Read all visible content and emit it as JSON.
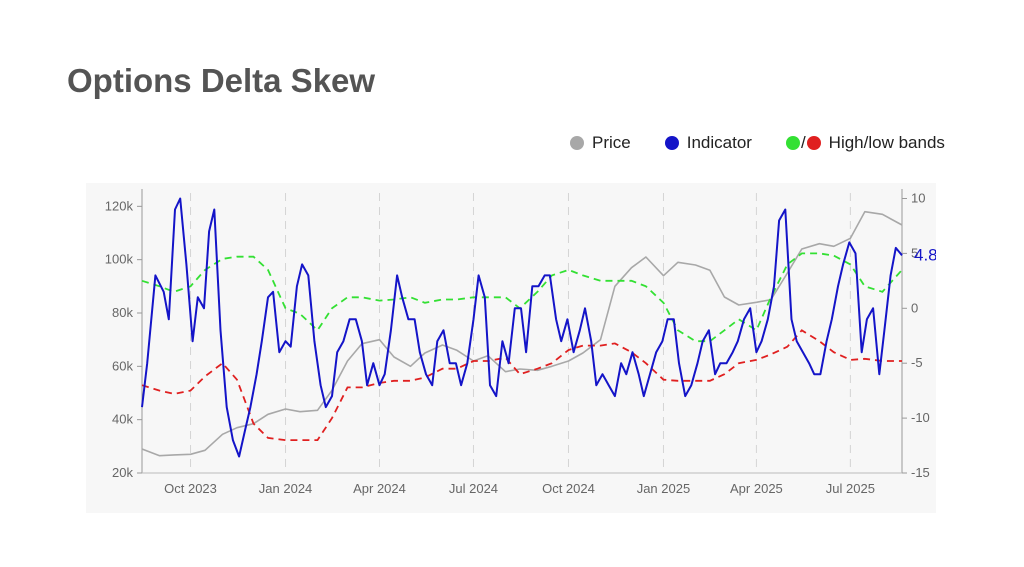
{
  "title": "Options Delta Skew",
  "legend": {
    "price": "Price",
    "indicator": "Indicator",
    "slash": "/",
    "bands": "High/low bands"
  },
  "colors": {
    "price": "#a8a8a8",
    "indicator": "#1414c8",
    "high_band": "#33e033",
    "low_band": "#e02020",
    "grid": "#d4d4d4",
    "axis_text": "#666666",
    "last_value": "#1414c8"
  },
  "chart_data": {
    "type": "line",
    "x_ticks": [
      "Oct 2023",
      "Jan 2024",
      "Apr 2024",
      "Jul 2024",
      "Oct 2024",
      "Jan 2025",
      "Apr 2025",
      "Jul 2025"
    ],
    "left_axis": {
      "label": "",
      "ylim": [
        20000,
        125000
      ],
      "ticks": [
        "20k",
        "40k",
        "60k",
        "80k",
        "100k",
        "120k"
      ]
    },
    "right_axis": {
      "label": "",
      "ylim": [
        -15,
        10.5
      ],
      "ticks": [
        "-15",
        "-10",
        "-5",
        "0",
        "5",
        "10"
      ]
    },
    "grid": "vertical dashed",
    "legend_position": "top-right",
    "last_value_label": "4.83",
    "series": [
      {
        "name": "Price",
        "axis": "left",
        "x": [
          "2023-08-15",
          "2023-09-01",
          "2023-09-15",
          "2023-10-01",
          "2023-10-15",
          "2023-11-01",
          "2023-11-15",
          "2023-12-01",
          "2023-12-15",
          "2024-01-01",
          "2024-01-15",
          "2024-02-01",
          "2024-02-15",
          "2024-03-01",
          "2024-03-15",
          "2024-04-01",
          "2024-04-15",
          "2024-05-01",
          "2024-05-15",
          "2024-06-01",
          "2024-06-15",
          "2024-07-01",
          "2024-07-15",
          "2024-08-01",
          "2024-08-15",
          "2024-09-01",
          "2024-09-15",
          "2024-10-01",
          "2024-10-15",
          "2024-11-01",
          "2024-11-15",
          "2024-12-01",
          "2024-12-15",
          "2025-01-01",
          "2025-01-15",
          "2025-02-01",
          "2025-02-15",
          "2025-03-01",
          "2025-03-15",
          "2025-04-01",
          "2025-04-15",
          "2025-05-01",
          "2025-05-15",
          "2025-06-01",
          "2025-06-15",
          "2025-07-01",
          "2025-07-15",
          "2025-08-01",
          "2025-08-20"
        ],
        "values": [
          29000,
          26500,
          26800,
          27000,
          28500,
          34500,
          37000,
          38500,
          42000,
          44000,
          43000,
          43500,
          51000,
          62000,
          68500,
          70000,
          63500,
          60000,
          65000,
          68000,
          66000,
          62000,
          64000,
          58000,
          59000,
          58500,
          60000,
          62000,
          65000,
          70000,
          90000,
          97000,
          101000,
          94000,
          99000,
          98000,
          96000,
          86000,
          83000,
          84000,
          85000,
          95000,
          104000,
          106000,
          105000,
          108000,
          118000,
          117000,
          113000
        ]
      },
      {
        "name": "Indicator",
        "axis": "right",
        "x": [
          "2023-08-15",
          "2023-08-20",
          "2023-08-28",
          "2023-09-05",
          "2023-09-10",
          "2023-09-16",
          "2023-09-21",
          "2023-09-27",
          "2023-10-03",
          "2023-10-08",
          "2023-10-14",
          "2023-10-19",
          "2023-10-24",
          "2023-10-30",
          "2023-11-05",
          "2023-11-11",
          "2023-11-17",
          "2023-11-23",
          "2023-11-28",
          "2023-12-04",
          "2023-12-09",
          "2023-12-15",
          "2023-12-20",
          "2023-12-26",
          "2024-01-01",
          "2024-01-06",
          "2024-01-12",
          "2024-01-17",
          "2024-01-23",
          "2024-01-29",
          "2024-02-04",
          "2024-02-09",
          "2024-02-15",
          "2024-02-20",
          "2024-02-26",
          "2024-03-03",
          "2024-03-09",
          "2024-03-15",
          "2024-03-20",
          "2024-03-26",
          "2024-04-01",
          "2024-04-06",
          "2024-04-12",
          "2024-04-18",
          "2024-04-23",
          "2024-04-29",
          "2024-05-05",
          "2024-05-10",
          "2024-05-16",
          "2024-05-22",
          "2024-05-27",
          "2024-06-02",
          "2024-06-08",
          "2024-06-14",
          "2024-06-19",
          "2024-06-25",
          "2024-07-01",
          "2024-07-06",
          "2024-07-12",
          "2024-07-17",
          "2024-07-23",
          "2024-07-29",
          "2024-08-04",
          "2024-08-10",
          "2024-08-16",
          "2024-08-21",
          "2024-08-27",
          "2024-09-02",
          "2024-09-08",
          "2024-09-13",
          "2024-09-19",
          "2024-09-24",
          "2024-09-30",
          "2024-10-06",
          "2024-10-12",
          "2024-10-17",
          "2024-10-23",
          "2024-10-28",
          "2024-11-03",
          "2024-11-09",
          "2024-11-15",
          "2024-11-21",
          "2024-11-26",
          "2024-12-02",
          "2024-12-08",
          "2024-12-13",
          "2024-12-19",
          "2024-12-25",
          "2024-12-31",
          "2025-01-05",
          "2025-01-11",
          "2025-01-16",
          "2025-01-22",
          "2025-01-28",
          "2025-02-03",
          "2025-02-08",
          "2025-02-14",
          "2025-02-20",
          "2025-02-25",
          "2025-03-03",
          "2025-03-09",
          "2025-03-14",
          "2025-03-20",
          "2025-03-26",
          "2025-04-01",
          "2025-04-06",
          "2025-04-12",
          "2025-04-18",
          "2025-04-23",
          "2025-04-29",
          "2025-05-05",
          "2025-05-10",
          "2025-05-16",
          "2025-05-22",
          "2025-05-27",
          "2025-06-02",
          "2025-06-08",
          "2025-06-13",
          "2025-06-19",
          "2025-06-24",
          "2025-06-30",
          "2025-07-06",
          "2025-07-12",
          "2025-07-17",
          "2025-07-23",
          "2025-07-29",
          "2025-08-03",
          "2025-08-09",
          "2025-08-14",
          "2025-08-20"
        ],
        "values": [
          -9,
          -5,
          3,
          1.5,
          -1,
          9,
          10,
          4,
          -3,
          1,
          0,
          7,
          9,
          -2,
          -9,
          -12,
          -13.5,
          -11,
          -9,
          -6,
          -3,
          1,
          1.5,
          -4,
          -3,
          -3.5,
          2,
          4,
          3,
          -3,
          -7,
          -9,
          -8,
          -4,
          -3,
          -1,
          -1,
          -3,
          -7,
          -5,
          -7,
          -6,
          -2,
          3,
          1,
          -1,
          -1,
          -4,
          -6,
          -7,
          -3,
          -2,
          -5,
          -5,
          -7,
          -5,
          -1,
          3,
          1,
          -7,
          -8,
          -3,
          -5,
          0,
          0,
          -4,
          2,
          2,
          3,
          3,
          -1,
          -3,
          -1,
          -4,
          -2,
          0,
          -3,
          -7,
          -6,
          -7,
          -8,
          -5,
          -6,
          -4,
          -6,
          -8,
          -6,
          -4,
          -3,
          -1,
          -1,
          -5,
          -8,
          -7,
          -5,
          -3,
          -2,
          -6,
          -5,
          -5,
          -4,
          -3,
          -1,
          0,
          -4,
          -3,
          -1,
          2,
          8,
          9,
          -1,
          -3,
          -4,
          -5,
          -6,
          -6,
          -3,
          -1,
          2,
          4,
          6,
          5,
          -4,
          -1,
          0,
          -6,
          -2,
          3,
          5.5,
          4.83
        ]
      },
      {
        "name": "High band",
        "axis": "right",
        "x": [
          "2023-08-15",
          "2023-09-01",
          "2023-09-15",
          "2023-10-01",
          "2023-10-15",
          "2023-11-01",
          "2023-11-15",
          "2023-12-01",
          "2023-12-15",
          "2024-01-01",
          "2024-01-15",
          "2024-02-01",
          "2024-02-15",
          "2024-03-01",
          "2024-03-15",
          "2024-04-01",
          "2024-04-15",
          "2024-05-01",
          "2024-05-15",
          "2024-06-01",
          "2024-06-15",
          "2024-07-01",
          "2024-07-15",
          "2024-08-01",
          "2024-08-15",
          "2024-09-01",
          "2024-09-15",
          "2024-10-01",
          "2024-10-15",
          "2024-11-01",
          "2024-11-15",
          "2024-12-01",
          "2024-12-15",
          "2025-01-01",
          "2025-01-15",
          "2025-02-01",
          "2025-02-15",
          "2025-03-01",
          "2025-03-15",
          "2025-04-01",
          "2025-04-15",
          "2025-05-01",
          "2025-05-15",
          "2025-06-01",
          "2025-06-15",
          "2025-07-01",
          "2025-07-15",
          "2025-08-01",
          "2025-08-20"
        ],
        "values": [
          2.5,
          2,
          1.5,
          2,
          3.5,
          4.5,
          4.7,
          4.7,
          3.5,
          0,
          -0.5,
          -2,
          0,
          1,
          1,
          0.7,
          0.8,
          1,
          0.5,
          0.8,
          0.8,
          1,
          1,
          1,
          0,
          1.5,
          3,
          3.5,
          3,
          2.5,
          2.5,
          2.5,
          2,
          0.5,
          -2,
          -3,
          -3,
          -2,
          -1,
          -2,
          1,
          4,
          5,
          5,
          4.8,
          4,
          2,
          1.5,
          3.5
        ]
      },
      {
        "name": "Low band",
        "axis": "right",
        "x": [
          "2023-08-15",
          "2023-09-01",
          "2023-09-15",
          "2023-10-01",
          "2023-10-15",
          "2023-11-01",
          "2023-11-15",
          "2023-12-01",
          "2023-12-15",
          "2024-01-01",
          "2024-01-15",
          "2024-02-01",
          "2024-02-15",
          "2024-03-01",
          "2024-03-15",
          "2024-04-01",
          "2024-04-15",
          "2024-05-01",
          "2024-05-15",
          "2024-06-01",
          "2024-06-15",
          "2024-07-01",
          "2024-07-15",
          "2024-08-01",
          "2024-08-15",
          "2024-09-01",
          "2024-09-15",
          "2024-10-01",
          "2024-10-15",
          "2024-11-01",
          "2024-11-15",
          "2024-12-01",
          "2024-12-15",
          "2025-01-01",
          "2025-01-15",
          "2025-02-01",
          "2025-02-15",
          "2025-03-01",
          "2025-03-15",
          "2025-04-01",
          "2025-04-15",
          "2025-05-01",
          "2025-05-15",
          "2025-06-01",
          "2025-06-15",
          "2025-07-01",
          "2025-07-15",
          "2025-08-01",
          "2025-08-20"
        ],
        "values": [
          -7,
          -7.5,
          -7.8,
          -7.5,
          -6.2,
          -5,
          -6.5,
          -10.5,
          -11.8,
          -12,
          -12,
          -12,
          -10,
          -7.2,
          -7.2,
          -6.8,
          -6.6,
          -6.6,
          -6.3,
          -5.5,
          -5.5,
          -4.8,
          -4.8,
          -4.5,
          -6,
          -5.5,
          -5,
          -3.8,
          -3.4,
          -3.4,
          -3.2,
          -4,
          -5,
          -6.5,
          -6.6,
          -6.6,
          -6.6,
          -6,
          -5,
          -4.7,
          -4.2,
          -3.5,
          -2,
          -3,
          -4,
          -4.7,
          -4.6,
          -4.8,
          -4.8
        ]
      }
    ]
  }
}
